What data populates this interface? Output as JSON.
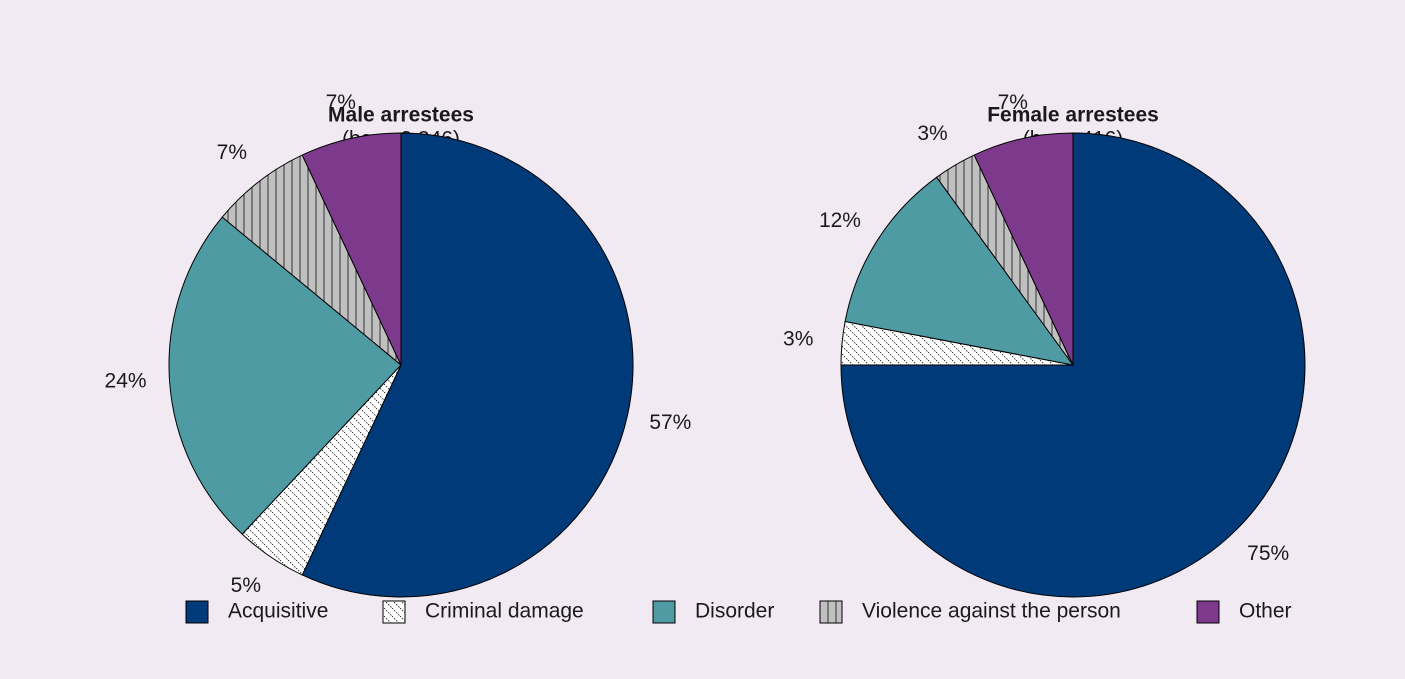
{
  "chart_data": [
    {
      "type": "pie",
      "title": "Male arrestees",
      "subtitle": "(base 3,346)",
      "categories": [
        "Acquisitive",
        "Criminal damage",
        "Disorder",
        "Violence against the person",
        "Other"
      ],
      "values": [
        57,
        5,
        24,
        7,
        7
      ],
      "value_labels": [
        "57%",
        "5%",
        "24%",
        "7%",
        "7%"
      ],
      "colors": [
        "#003a78",
        "#ffffff",
        "#4f9ba3",
        "#c0c0c0",
        "#7d3a8c"
      ],
      "patterns": [
        "solid",
        "diagonal",
        "solid",
        "vertical",
        "solid"
      ]
    },
    {
      "type": "pie",
      "title": "Female arrestees",
      "subtitle": "(base 416)",
      "categories": [
        "Acquisitive",
        "Criminal damage",
        "Disorder",
        "Violence against the person",
        "Other"
      ],
      "values": [
        75,
        3,
        12,
        3,
        7
      ],
      "value_labels": [
        "75%",
        "3%",
        "12%",
        "3%",
        "7%"
      ],
      "colors": [
        "#003a78",
        "#ffffff",
        "#4f9ba3",
        "#c0c0c0",
        "#7d3a8c"
      ],
      "patterns": [
        "solid",
        "diagonal",
        "solid",
        "vertical",
        "solid"
      ]
    }
  ]
}
